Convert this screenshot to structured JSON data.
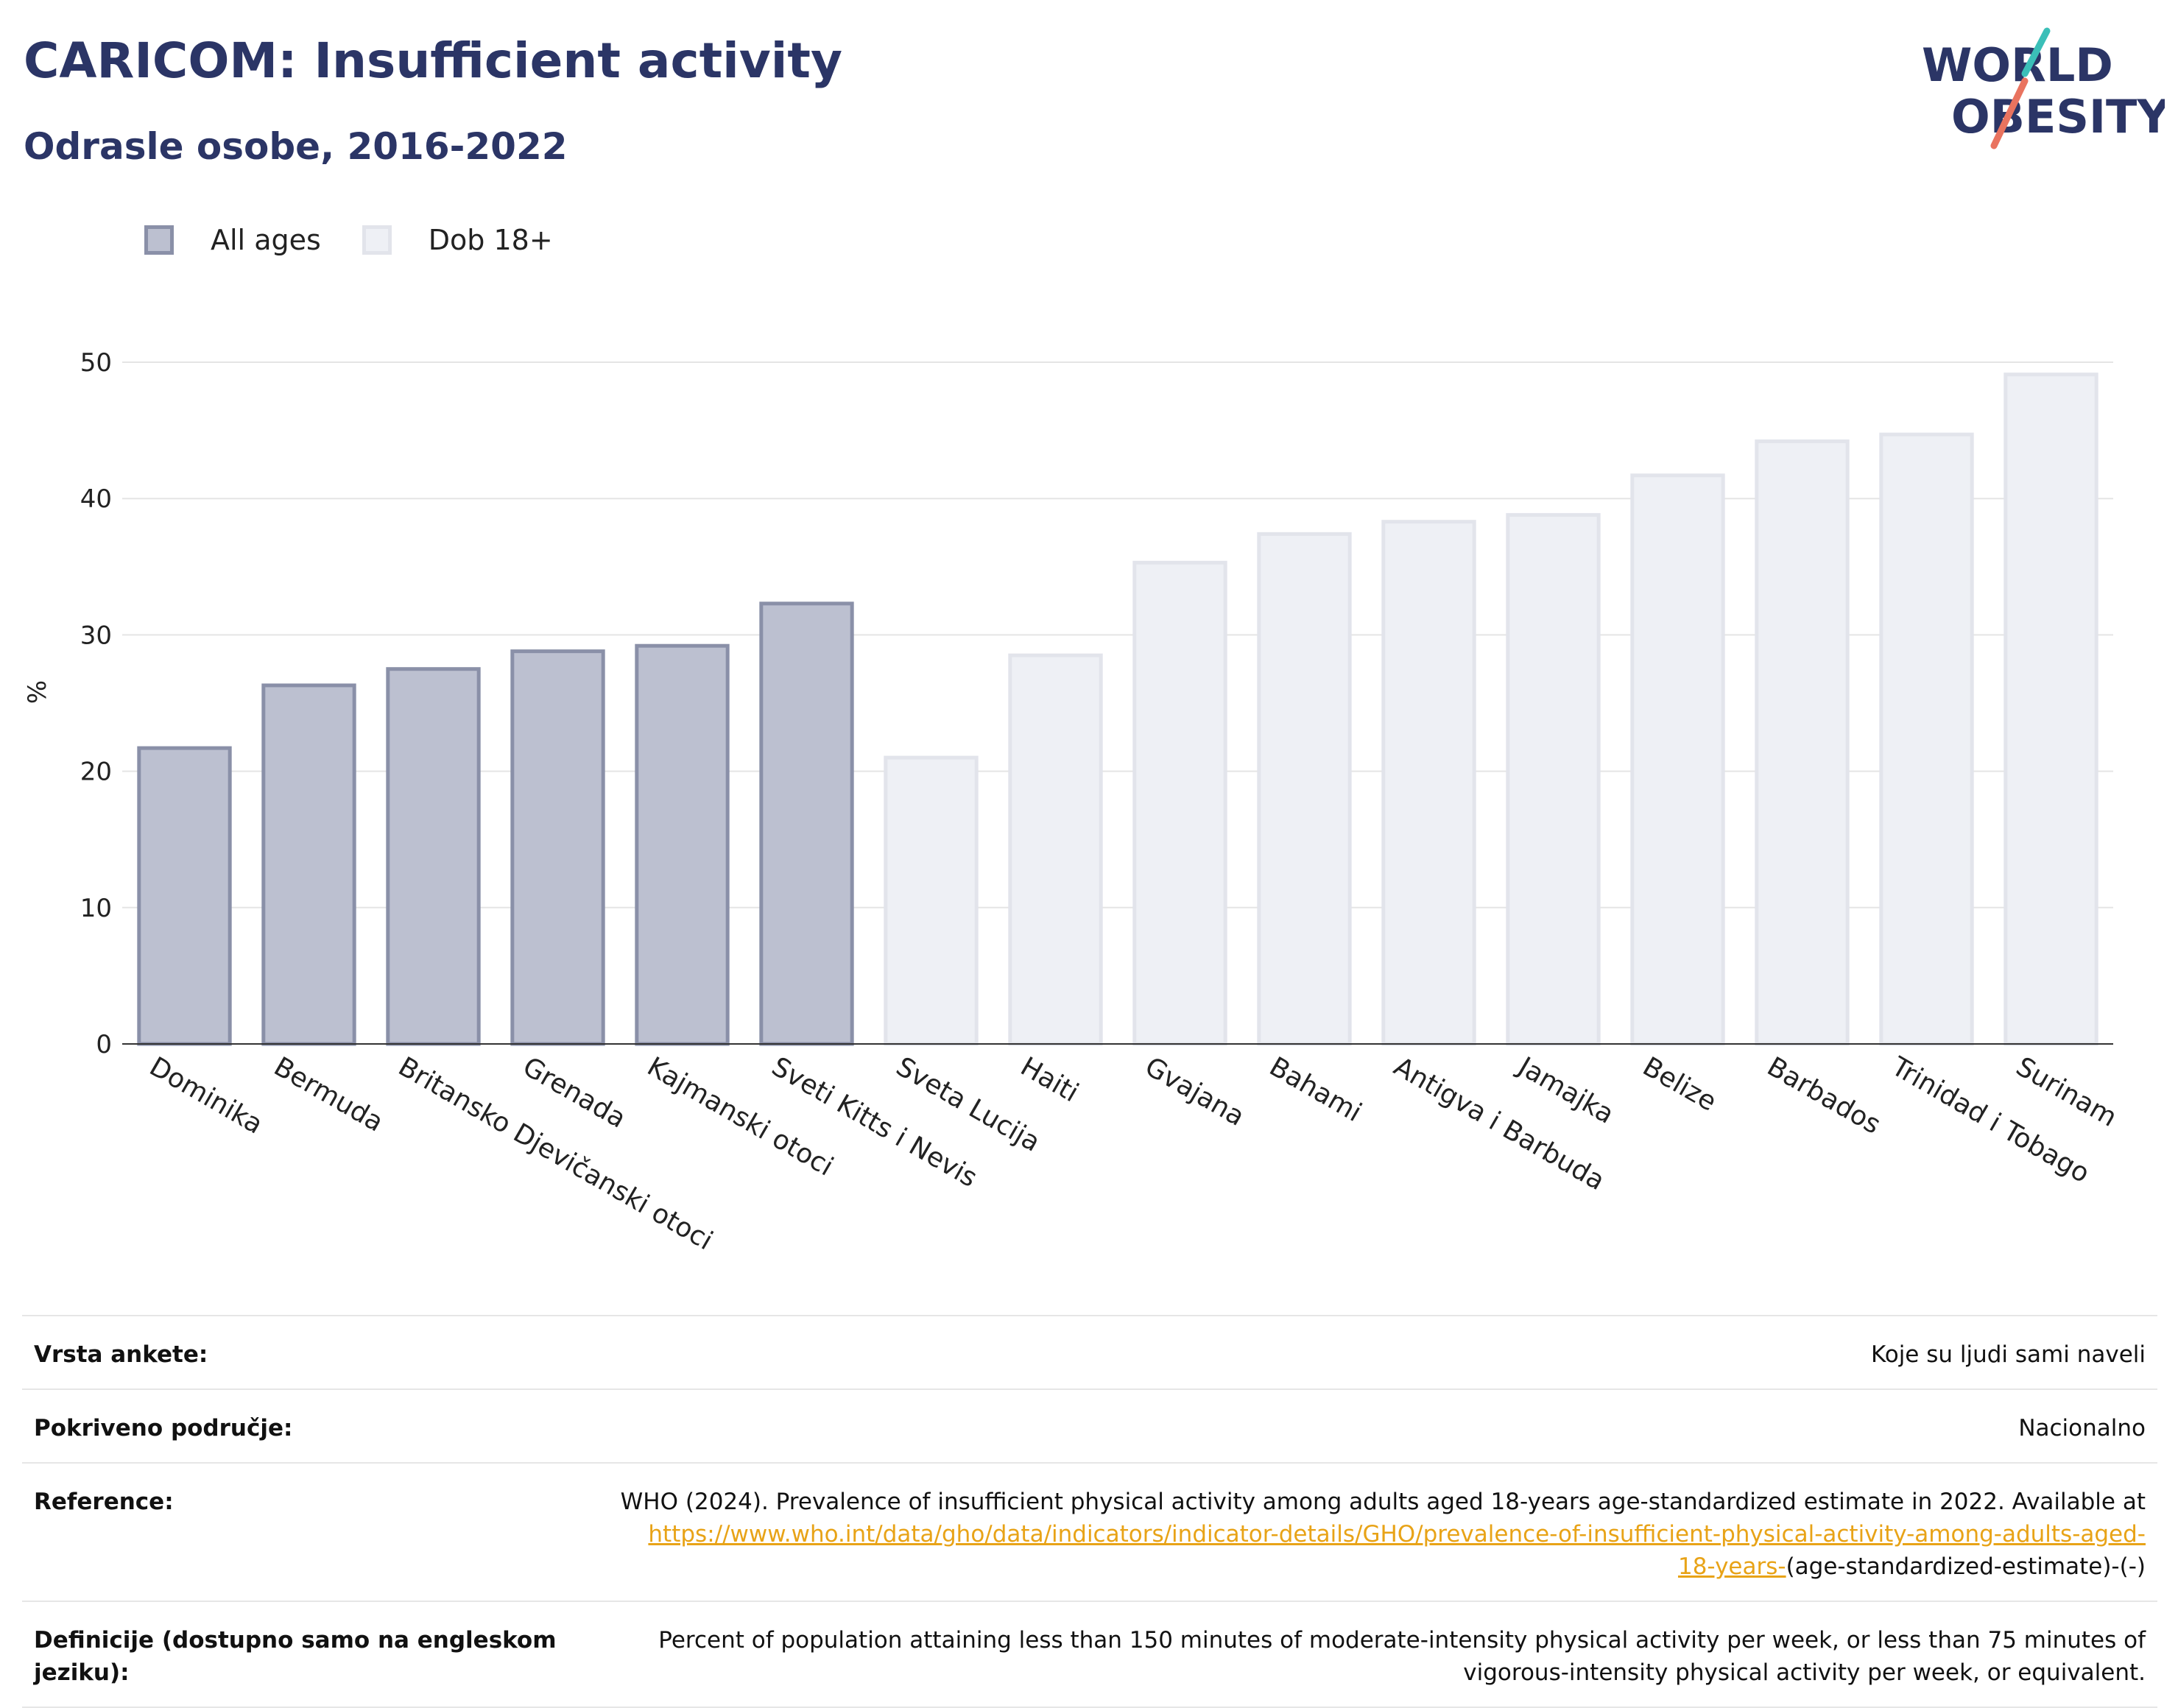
{
  "title": "CARICOM: Insufficient activity",
  "subtitle": "Odrasle osobe, 2016-2022",
  "logo": {
    "line1": "WORLD",
    "line2": "OBESITY"
  },
  "legend": [
    {
      "label": "All ages",
      "color": "#bcc0d0",
      "border": "#8a90a8"
    },
    {
      "label": "Dob 18+",
      "color": "#eef0f5",
      "border": "#e2e4eb"
    }
  ],
  "chart_data": {
    "type": "bar",
    "ylabel": "%",
    "ylim": [
      0,
      50
    ],
    "yticks": [
      0,
      10,
      20,
      30,
      40,
      50
    ],
    "grid": true,
    "legend_position": "top-left",
    "categories": [
      "Dominika",
      "Bermuda",
      "Britansko Djevičanski otoci",
      "Grenada",
      "Kajmanski otoci",
      "Sveti Kitts i Nevis",
      "Sveta Lucija",
      "Haiti",
      "Gvajana",
      "Bahami",
      "Antigva i Barbuda",
      "Jamajka",
      "Belize",
      "Barbados",
      "Trinidad i Tobago",
      "Surinam"
    ],
    "values": [
      21.7,
      26.3,
      27.5,
      28.8,
      29.2,
      32.3,
      21.0,
      28.5,
      35.3,
      37.4,
      38.3,
      38.8,
      41.7,
      44.2,
      44.7,
      49.1
    ],
    "series_index": [
      0,
      0,
      0,
      0,
      0,
      0,
      1,
      1,
      1,
      1,
      1,
      1,
      1,
      1,
      1,
      1
    ]
  },
  "meta": [
    {
      "label": "Vrsta ankete:",
      "value": "Koje su ljudi sami naveli"
    },
    {
      "label": "Pokriveno područje:",
      "value": "Nacionalno"
    },
    {
      "label": "Reference:",
      "value_pre": "WHO (2024). Prevalence of insufficient physical activity among adults aged 18-years age-standardized estimate in 2022. Available at",
      "link_part1": "https://www.who.int/data/gho/data/indicators/indicator-details/GHO/prevalence-of-insufficient-physical-activity-among-adults-aged-",
      "link_part2": "18-years-",
      "value_post": "(age-standardized-estimate)-(-)"
    },
    {
      "label": "Definicije (dostupno samo na engleskom jeziku):",
      "value": "Percent of population attaining less than 150 minutes of moderate-intensity physical activity per week, or less than 75 minutes of vigorous-intensity physical activity per week, or equivalent."
    }
  ]
}
